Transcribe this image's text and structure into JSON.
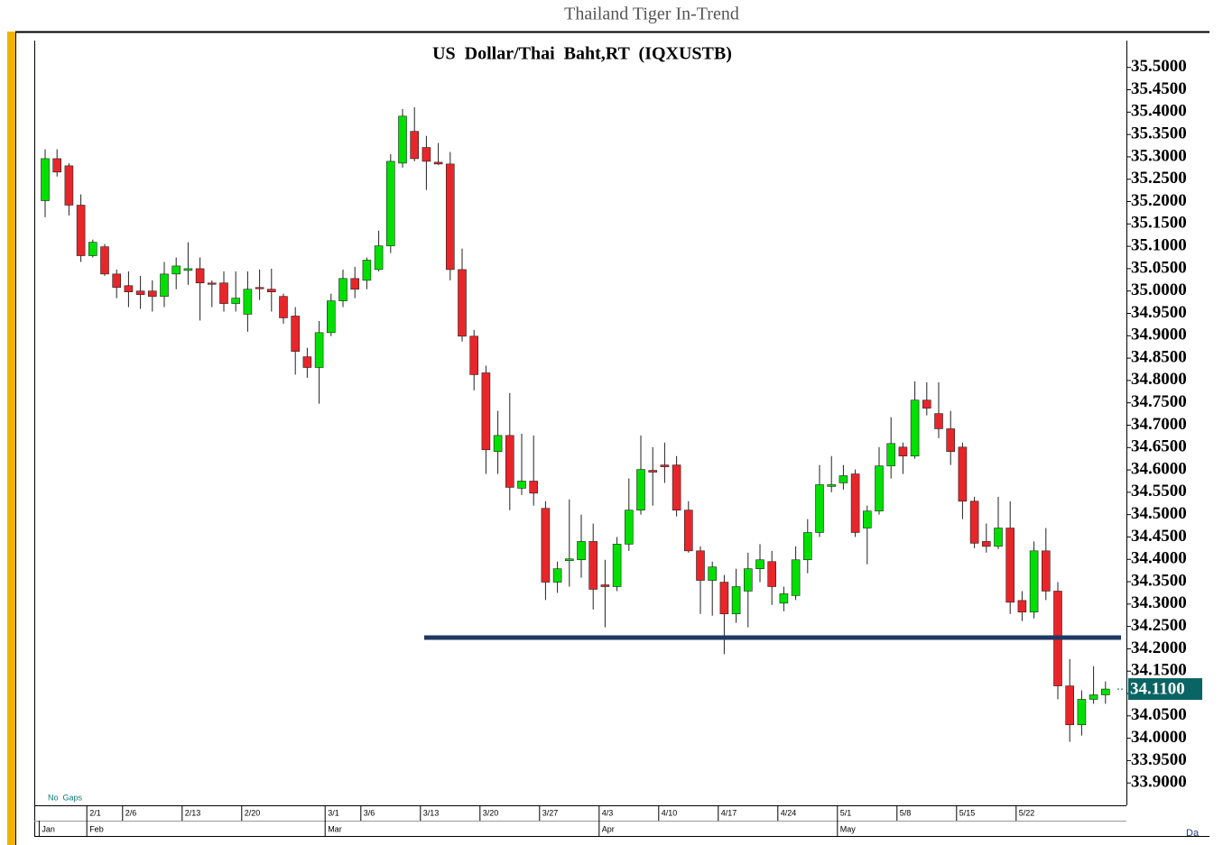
{
  "page_title": "Thailand Tiger In-Trend",
  "chart_data": {
    "type": "candlestick",
    "title": "US  Dollar/Thai  Baht,RT  (IQXUSTB)",
    "note": "No  Gaps",
    "corner_text": "Da",
    "up_color": "#00e000",
    "down_color": "#e8262a",
    "categories": [
      null,
      null,
      null,
      null,
      "2/1",
      null,
      null,
      "2/6",
      null,
      null,
      null,
      null,
      "2/13",
      null,
      null,
      null,
      null,
      "2/20",
      null,
      null,
      null,
      null,
      null,
      null,
      "3/1",
      null,
      null,
      "3/6",
      null,
      null,
      null,
      null,
      "3/13",
      null,
      null,
      null,
      null,
      "3/20",
      null,
      null,
      null,
      null,
      "3/27",
      null,
      null,
      null,
      null,
      "4/3",
      null,
      null,
      null,
      null,
      "4/10",
      null,
      null,
      null,
      null,
      "4/17",
      null,
      null,
      null,
      null,
      "4/24",
      null,
      null,
      null,
      null,
      "5/1",
      null,
      null,
      null,
      null,
      "5/8",
      null,
      null,
      null,
      null,
      "5/15",
      null,
      null,
      null,
      null,
      "5/22",
      null,
      null,
      null,
      null,
      null,
      null,
      null
    ],
    "months": [
      "Jan",
      null,
      null,
      null,
      "Feb",
      null,
      null,
      null,
      null,
      null,
      null,
      null,
      null,
      null,
      null,
      null,
      null,
      null,
      null,
      null,
      null,
      null,
      null,
      null,
      "Mar",
      null,
      null,
      null,
      null,
      null,
      null,
      null,
      null,
      null,
      null,
      null,
      null,
      null,
      null,
      null,
      null,
      null,
      null,
      null,
      null,
      null,
      null,
      "Apr",
      null,
      null,
      null,
      null,
      null,
      null,
      null,
      null,
      null,
      null,
      null,
      null,
      null,
      null,
      null,
      null,
      null,
      null,
      null,
      "May",
      null,
      null,
      null,
      null,
      null,
      null,
      null,
      null,
      null,
      null,
      null,
      null,
      null,
      null,
      null,
      null,
      null,
      null,
      null,
      null,
      null,
      null
    ],
    "open": [
      35.202,
      35.296,
      35.28,
      35.192,
      35.079,
      35.099,
      35.038,
      35.012,
      35.0,
      35.0,
      34.988,
      35.038,
      35.046,
      35.05,
      35.018,
      35.018,
      34.972,
      34.948,
      35.008,
      35.004,
      34.988,
      34.944,
      34.853,
      34.829,
      34.907,
      34.978,
      35.028,
      35.024,
      35.048,
      35.101,
      35.286,
      35.357,
      35.321,
      35.288,
      35.284,
      35.048,
      34.899,
      34.817,
      34.641,
      34.677,
      34.559,
      34.575,
      34.514,
      34.349,
      34.397,
      34.399,
      34.44,
      34.343,
      34.339,
      34.434,
      34.51,
      34.599,
      34.611,
      34.611,
      34.51,
      34.419,
      34.353,
      34.349,
      34.278,
      34.329,
      34.379,
      34.395,
      34.302,
      34.319,
      34.399,
      34.46,
      34.563,
      34.571,
      34.591,
      34.47,
      34.508,
      34.609,
      34.651,
      34.631,
      34.756,
      34.726,
      34.692,
      34.651,
      34.53,
      34.44,
      34.429,
      34.47,
      34.308,
      34.282,
      34.419,
      34.329,
      34.117,
      34.03,
      34.087,
      34.097
    ],
    "high": [
      35.317,
      35.317,
      35.286,
      35.216,
      35.115,
      35.105,
      35.048,
      35.044,
      35.034,
      35.024,
      35.065,
      35.075,
      35.109,
      35.075,
      35.024,
      35.044,
      35.044,
      35.044,
      35.048,
      35.05,
      34.994,
      34.964,
      34.873,
      34.933,
      34.994,
      35.048,
      35.054,
      35.075,
      35.135,
      35.306,
      35.407,
      35.411,
      35.347,
      35.331,
      35.311,
      35.095,
      34.913,
      34.833,
      34.732,
      34.772,
      34.681,
      34.677,
      34.53,
      34.395,
      34.534,
      34.5,
      34.48,
      34.399,
      34.45,
      34.581,
      34.677,
      34.651,
      34.661,
      34.631,
      34.53,
      34.429,
      34.395,
      34.365,
      34.379,
      34.415,
      34.434,
      34.419,
      34.339,
      34.429,
      34.49,
      34.611,
      34.631,
      34.611,
      34.601,
      34.52,
      34.651,
      34.718,
      34.661,
      34.798,
      34.796,
      34.796,
      34.732,
      34.661,
      34.54,
      34.48,
      34.54,
      34.53,
      34.329,
      34.44,
      34.47,
      34.349,
      34.177,
      34.107,
      34.161,
      34.127
    ],
    "low": [
      35.165,
      35.256,
      35.169,
      35.065,
      35.075,
      35.034,
      34.984,
      34.964,
      34.96,
      34.954,
      34.964,
      35.004,
      35.014,
      34.934,
      34.964,
      34.954,
      34.954,
      34.909,
      34.98,
      34.954,
      34.927,
      34.813,
      34.806,
      34.748,
      34.899,
      34.964,
      34.984,
      35.004,
      35.044,
      35.085,
      35.276,
      35.29,
      35.226,
      35.282,
      35.024,
      34.887,
      34.778,
      34.591,
      34.591,
      34.51,
      34.544,
      34.52,
      34.309,
      34.325,
      34.339,
      34.359,
      34.288,
      34.248,
      34.329,
      34.419,
      34.5,
      34.52,
      34.571,
      34.496,
      34.415,
      34.278,
      34.274,
      34.188,
      34.258,
      34.248,
      34.349,
      34.298,
      34.284,
      34.309,
      34.369,
      34.45,
      34.55,
      34.556,
      34.45,
      34.389,
      34.5,
      34.581,
      34.591,
      34.625,
      34.722,
      34.671,
      34.611,
      34.49,
      34.425,
      34.415,
      34.423,
      34.278,
      34.262,
      34.268,
      34.309,
      34.087,
      33.992,
      34.006,
      34.077,
      34.077
    ],
    "close": [
      35.296,
      35.266,
      35.192,
      35.079,
      35.109,
      35.038,
      35.008,
      34.998,
      34.992,
      34.988,
      35.038,
      35.056,
      35.05,
      35.018,
      35.016,
      34.972,
      34.984,
      35.004,
      35.006,
      34.998,
      34.94,
      34.865,
      34.829,
      34.907,
      34.978,
      35.028,
      35.004,
      35.069,
      35.101,
      35.29,
      35.391,
      35.296,
      35.29,
      35.284,
      35.048,
      34.899,
      34.813,
      34.645,
      34.677,
      34.561,
      34.575,
      34.548,
      34.349,
      34.379,
      34.401,
      34.44,
      34.333,
      34.339,
      34.434,
      34.51,
      34.601,
      34.595,
      34.607,
      34.51,
      34.419,
      34.353,
      34.383,
      34.278,
      34.339,
      34.379,
      34.399,
      34.339,
      34.323,
      34.399,
      34.46,
      34.567,
      34.567,
      34.587,
      34.46,
      34.508,
      34.609,
      34.659,
      34.631,
      34.756,
      34.738,
      34.692,
      34.641,
      34.53,
      34.436,
      34.429,
      34.47,
      34.304,
      34.282,
      34.419,
      34.329,
      34.117,
      34.03,
      34.087,
      34.097,
      34.11
    ],
    "support_line": {
      "value": 34.225,
      "color": "#1f3864"
    },
    "last_price": {
      "value": 34.11,
      "label": "34.1100",
      "color": "#0b6464"
    },
    "ylim": [
      33.85,
      35.56
    ],
    "yticks": [
      {
        "value": 33.9,
        "label": "33.9000"
      },
      {
        "value": 33.95,
        "label": "33.9500"
      },
      {
        "value": 34.0,
        "label": "34.0000"
      },
      {
        "value": 34.05,
        "label": "34.0500"
      },
      {
        "value": 34.1,
        "label": "34.1000"
      },
      {
        "value": 34.15,
        "label": "34.1500"
      },
      {
        "value": 34.2,
        "label": "34.2000"
      },
      {
        "value": 34.25,
        "label": "34.2500"
      },
      {
        "value": 34.3,
        "label": "34.3000"
      },
      {
        "value": 34.35,
        "label": "34.3500"
      },
      {
        "value": 34.4,
        "label": "34.4000"
      },
      {
        "value": 34.45,
        "label": "34.4500"
      },
      {
        "value": 34.5,
        "label": "34.5000"
      },
      {
        "value": 34.55,
        "label": "34.5500"
      },
      {
        "value": 34.6,
        "label": "34.6000"
      },
      {
        "value": 34.65,
        "label": "34.6500"
      },
      {
        "value": 34.7,
        "label": "34.7000"
      },
      {
        "value": 34.75,
        "label": "34.7500"
      },
      {
        "value": 34.8,
        "label": "34.8000"
      },
      {
        "value": 34.85,
        "label": "34.8500"
      },
      {
        "value": 34.9,
        "label": "34.9000"
      },
      {
        "value": 34.95,
        "label": "34.9500"
      },
      {
        "value": 35.0,
        "label": "35.0000"
      },
      {
        "value": 35.05,
        "label": "35.0500"
      },
      {
        "value": 35.1,
        "label": "35.1000"
      },
      {
        "value": 35.15,
        "label": "35.1500"
      },
      {
        "value": 35.2,
        "label": "35.2000"
      },
      {
        "value": 35.25,
        "label": "35.2500"
      },
      {
        "value": 35.3,
        "label": "35.3000"
      },
      {
        "value": 35.35,
        "label": "35.3500"
      },
      {
        "value": 35.4,
        "label": "35.4000"
      },
      {
        "value": 35.45,
        "label": "35.4500"
      },
      {
        "value": 35.5,
        "label": "35.5000"
      }
    ]
  }
}
